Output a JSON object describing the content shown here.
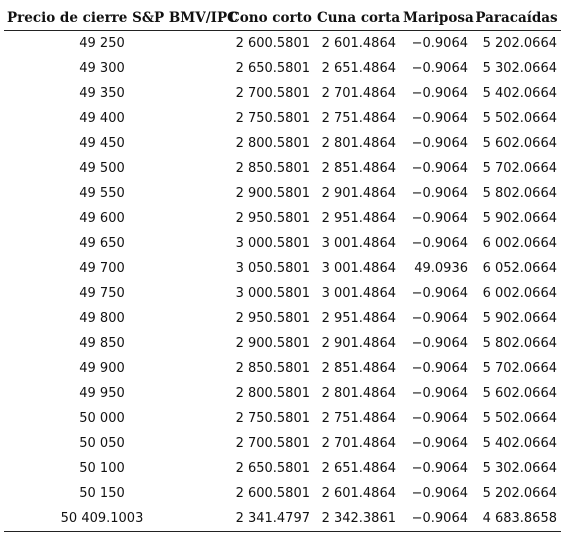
{
  "table": {
    "headers": [
      "Precio de cierre S&P BMV/IPC",
      "Cono corto",
      "Cuna corta",
      "Mariposa",
      "Paracaídas"
    ],
    "rows": [
      [
        "49 250",
        "2 600.5801",
        "2 601.4864",
        "−0.9064",
        "5 202.0664"
      ],
      [
        "49 300",
        "2 650.5801",
        "2 651.4864",
        "−0.9064",
        "5 302.0664"
      ],
      [
        "49 350",
        "2 700.5801",
        "2 701.4864",
        "−0.9064",
        "5 402.0664"
      ],
      [
        "49 400",
        "2 750.5801",
        "2 751.4864",
        "−0.9064",
        "5 502.0664"
      ],
      [
        "49 450",
        "2 800.5801",
        "2 801.4864",
        "−0.9064",
        "5 602.0664"
      ],
      [
        "49 500",
        "2 850.5801",
        "2 851.4864",
        "−0.9064",
        "5 702.0664"
      ],
      [
        "49 550",
        "2 900.5801",
        "2 901.4864",
        "−0.9064",
        "5 802.0664"
      ],
      [
        "49 600",
        "2 950.5801",
        "2 951.4864",
        "−0.9064",
        "5 902.0664"
      ],
      [
        "49 650",
        "3 000.5801",
        "3 001.4864",
        "−0.9064",
        "6 002.0664"
      ],
      [
        "49 700",
        "3 050.5801",
        "3 001.4864",
        "49.0936",
        "6 052.0664"
      ],
      [
        "49 750",
        "3 000.5801",
        "3 001.4864",
        "−0.9064",
        "6 002.0664"
      ],
      [
        "49 800",
        "2 950.5801",
        "2 951.4864",
        "−0.9064",
        "5 902.0664"
      ],
      [
        "49 850",
        "2 900.5801",
        "2 901.4864",
        "−0.9064",
        "5 802.0664"
      ],
      [
        "49 900",
        "2 850.5801",
        "2 851.4864",
        "−0.9064",
        "5 702.0664"
      ],
      [
        "49 950",
        "2 800.5801",
        "2 801.4864",
        "−0.9064",
        "5 602.0664"
      ],
      [
        "50 000",
        "2 750.5801",
        "2 751.4864",
        "−0.9064",
        "5 502.0664"
      ],
      [
        "50 050",
        "2 700.5801",
        "2 701.4864",
        "−0.9064",
        "5 402.0664"
      ],
      [
        "50 100",
        "2 650.5801",
        "2 651.4864",
        "−0.9064",
        "5 302.0664"
      ],
      [
        "50 150",
        "2 600.5801",
        "2 601.4864",
        "−0.9064",
        "5 202.0664"
      ],
      [
        "50 409.1003",
        "2 341.4797",
        "2 342.3861",
        "−0.9064",
        "4 683.8658"
      ]
    ]
  }
}
